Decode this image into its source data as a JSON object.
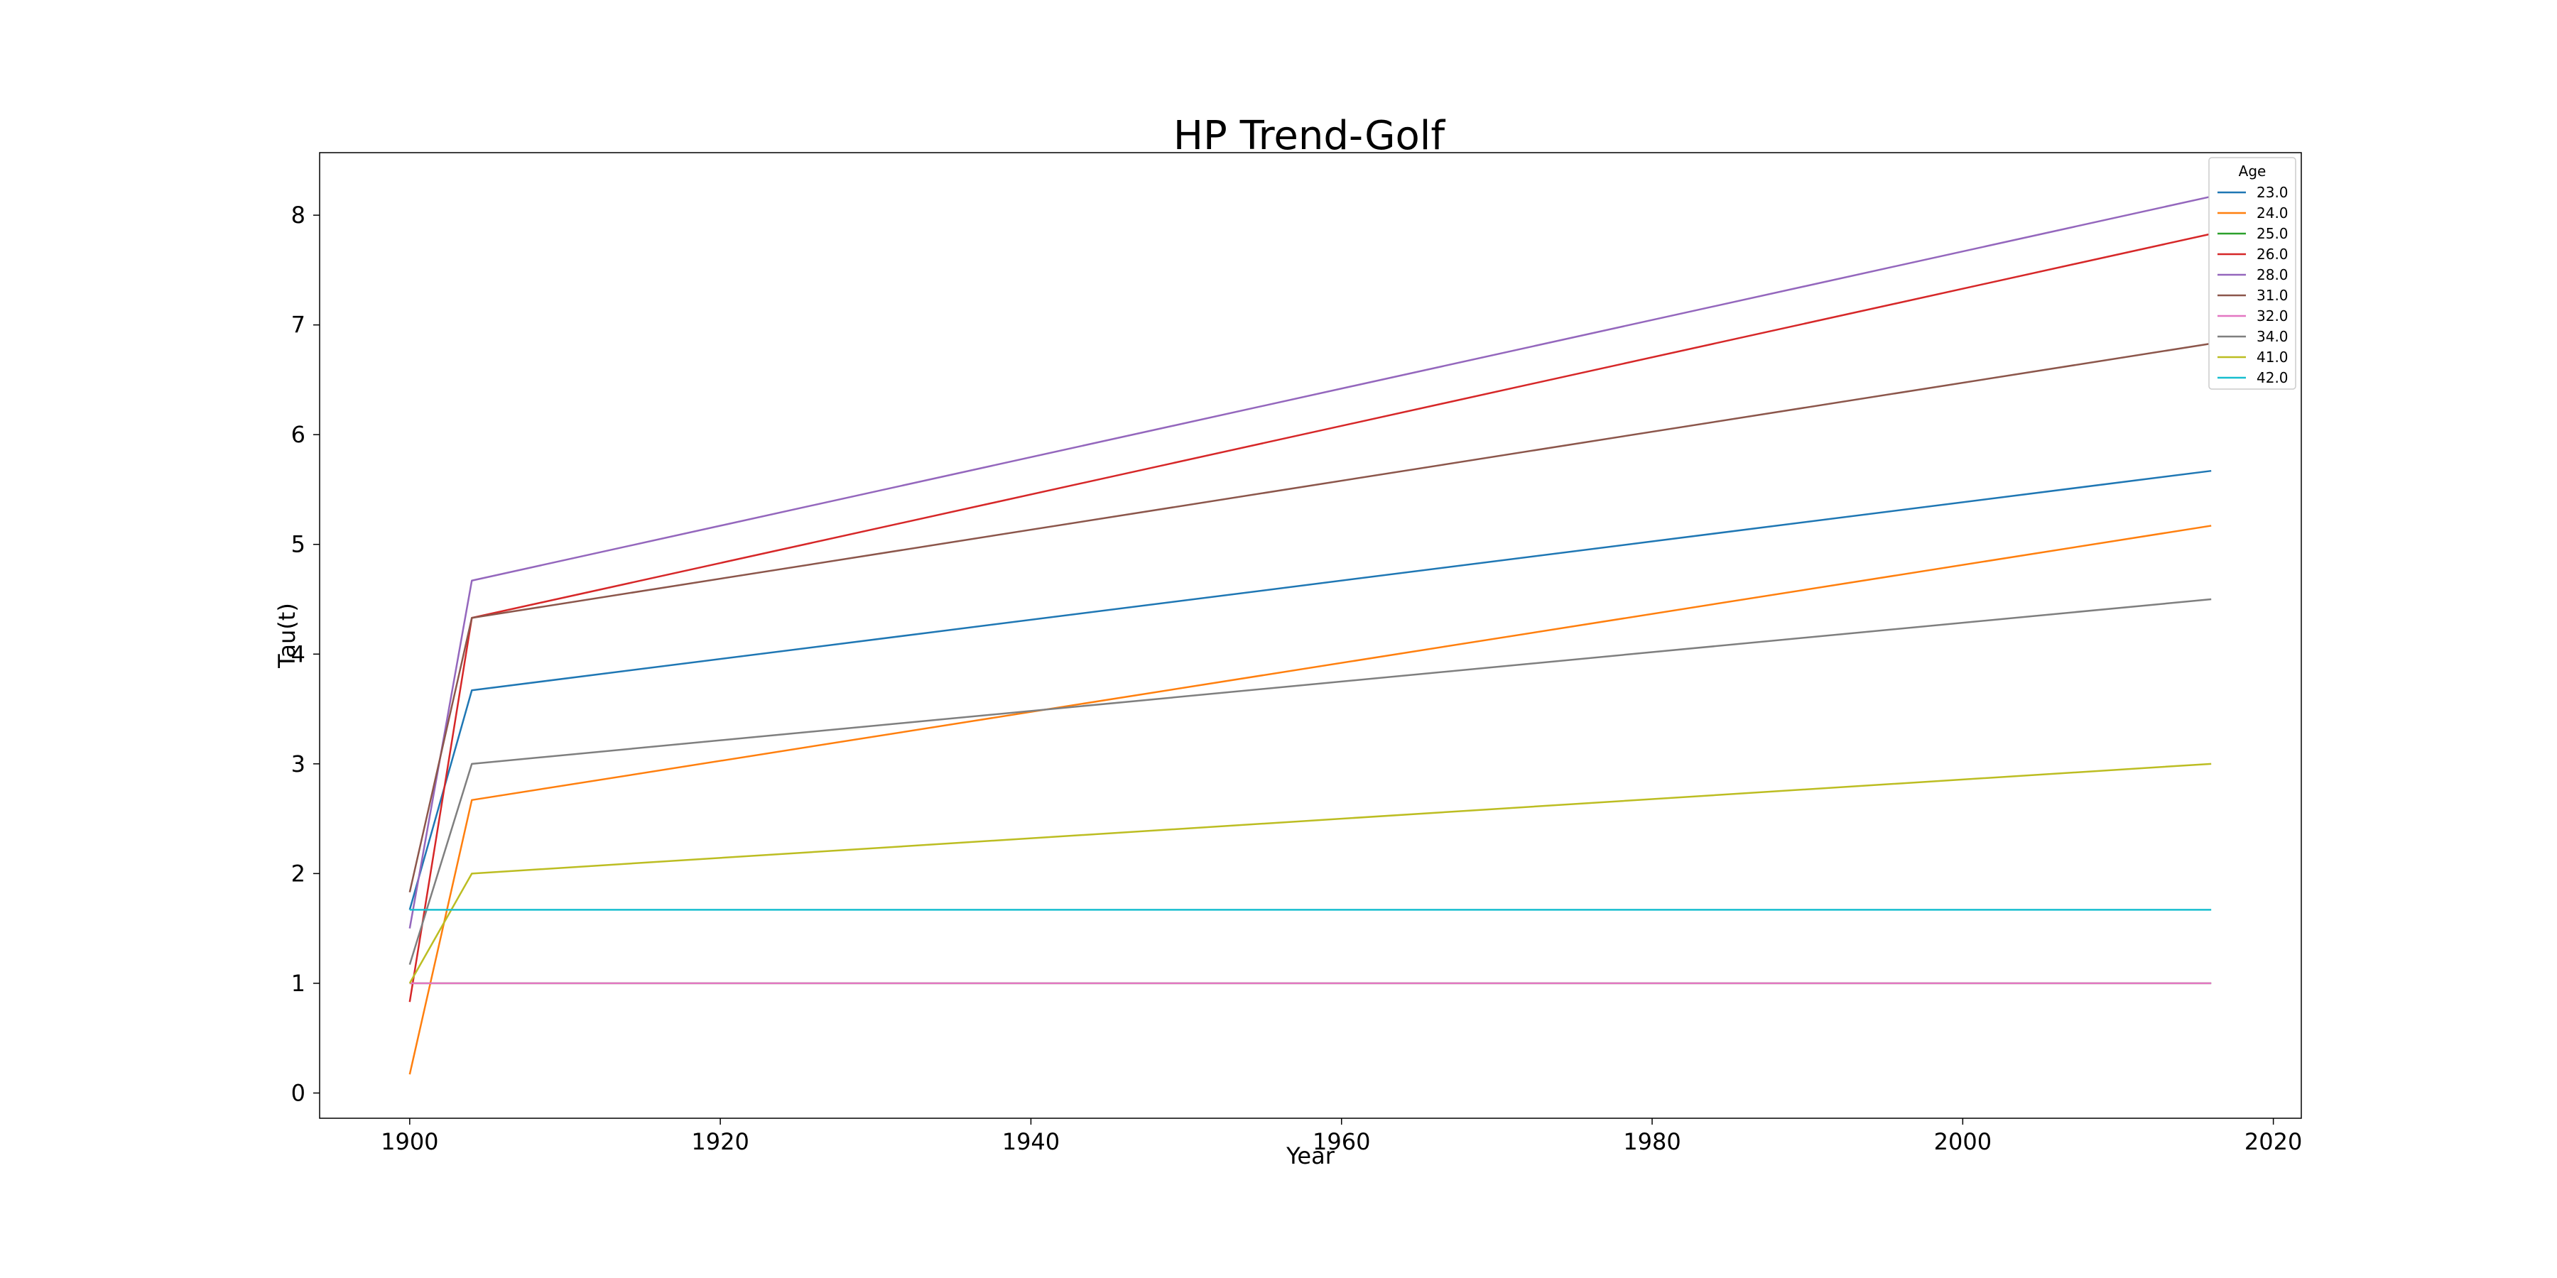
{
  "chart_data": {
    "type": "line",
    "title": "HP Trend-Golf",
    "xlabel": "Year",
    "ylabel": "Tau(t)",
    "xlim": [
      1894.2,
      2021.8
    ],
    "ylim": [
      -0.23,
      8.57
    ],
    "xticks": [
      1900,
      1920,
      1940,
      1960,
      1980,
      2000,
      2020
    ],
    "yticks": [
      0,
      1,
      2,
      3,
      4,
      5,
      6,
      7,
      8
    ],
    "grid": false,
    "legend": {
      "title": "Age",
      "placement": "top-right"
    },
    "x": [
      1900,
      1904,
      2016
    ],
    "series": [
      {
        "name": "23.0",
        "color": "#1f77b4",
        "values": [
          1.67,
          3.67,
          5.67
        ]
      },
      {
        "name": "24.0",
        "color": "#ff7f0e",
        "values": [
          0.17,
          2.67,
          5.17
        ]
      },
      {
        "name": "25.0",
        "color": "#2ca02c",
        "values": [
          1.0,
          1.0,
          1.0
        ]
      },
      {
        "name": "26.0",
        "color": "#d62728",
        "values": [
          0.83,
          4.33,
          7.83
        ]
      },
      {
        "name": "28.0",
        "color": "#9467bd",
        "values": [
          1.5,
          4.67,
          8.17
        ]
      },
      {
        "name": "31.0",
        "color": "#8c564b",
        "values": [
          1.83,
          4.33,
          6.83
        ]
      },
      {
        "name": "32.0",
        "color": "#e377c2",
        "values": [
          1.0,
          1.0,
          1.0
        ]
      },
      {
        "name": "34.0",
        "color": "#7f7f7f",
        "values": [
          1.17,
          3.0,
          4.5
        ]
      },
      {
        "name": "41.0",
        "color": "#bcbd22",
        "values": [
          1.0,
          2.0,
          3.0
        ]
      },
      {
        "name": "42.0",
        "color": "#17becf",
        "values": [
          1.67,
          1.67,
          1.67
        ]
      }
    ]
  }
}
